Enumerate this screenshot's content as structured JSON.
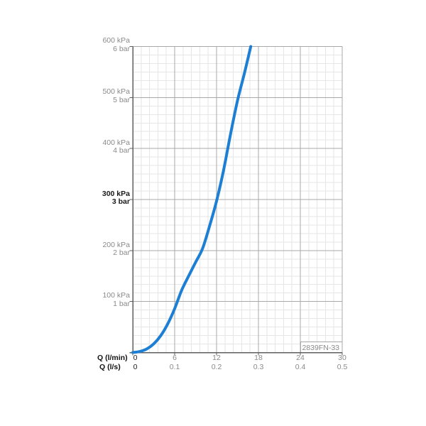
{
  "chart_data": {
    "type": "line",
    "product_code": "2839FN-33",
    "x_axis": {
      "primary_label": "Q (l/min)",
      "secondary_label": "Q (l/s)",
      "range_lmin": [
        0,
        30
      ],
      "range_ls": [
        0,
        0.5
      ],
      "ticks": [
        {
          "lmin": "0",
          "ls": "0",
          "value": 0,
          "emphasis": true
        },
        {
          "lmin": "6",
          "ls": "0.1",
          "value": 6,
          "emphasis": false
        },
        {
          "lmin": "12",
          "ls": "0.2",
          "value": 12,
          "emphasis": false
        },
        {
          "lmin": "18",
          "ls": "0.3",
          "value": 18,
          "emphasis": false
        },
        {
          "lmin": "24",
          "ls": "0.4",
          "value": 24,
          "emphasis": false
        },
        {
          "lmin": "30",
          "ls": "0.5",
          "value": 30,
          "emphasis": false
        }
      ]
    },
    "y_axis": {
      "range_kpa": [
        0,
        600
      ],
      "ticks": [
        {
          "kpa": "600 kPa",
          "bar": "6 bar",
          "value": 600,
          "emphasis": false
        },
        {
          "kpa": "500 kPa",
          "bar": "5 bar",
          "value": 500,
          "emphasis": false
        },
        {
          "kpa": "400 kPa",
          "bar": "4 bar",
          "value": 400,
          "emphasis": false
        },
        {
          "kpa": "300 kPa",
          "bar": "3 bar",
          "value": 300,
          "emphasis": true
        },
        {
          "kpa": "200 kPa",
          "bar": "2 bar",
          "value": 200,
          "emphasis": false
        },
        {
          "kpa": "100 kPa",
          "bar": "1 bar",
          "value": 100,
          "emphasis": false
        }
      ]
    },
    "grid": {
      "on": true,
      "minor_per_major_x": 5,
      "minor_per_major_y": 6
    },
    "series": [
      {
        "name": "pressure-flow-curve",
        "color": "#1d7fd3",
        "points_lmin_kpa": [
          [
            0,
            0
          ],
          [
            1,
            2
          ],
          [
            2,
            7
          ],
          [
            3,
            17
          ],
          [
            4,
            33
          ],
          [
            5,
            56
          ],
          [
            6,
            86
          ],
          [
            7,
            122
          ],
          [
            8,
            150
          ],
          [
            9,
            177
          ],
          [
            10,
            204
          ],
          [
            11,
            248
          ],
          [
            12,
            297
          ],
          [
            13,
            357
          ],
          [
            14,
            428
          ],
          [
            15,
            494
          ],
          [
            16,
            548
          ],
          [
            16.9,
            600
          ]
        ]
      }
    ],
    "colors": {
      "curve": "#1d7fd3",
      "axis": "#5f5f5f",
      "major_grid": "#a8a8a8",
      "minor_grid": "#e6e6e6",
      "label_gray": "#8a8a8a",
      "label_dark": "#1a1a1a"
    }
  }
}
